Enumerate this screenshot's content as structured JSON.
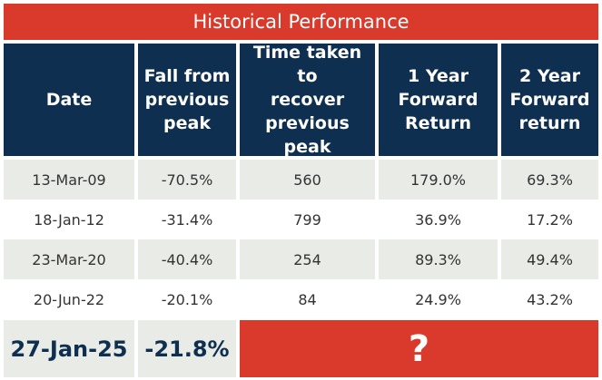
{
  "title": "Historical Performance",
  "headers": [
    "Date",
    "Fall from\nprevious\npeak",
    "Time taken to\nrecover\nprevious peak",
    "1 Year\nForward\nReturn",
    "2 Year\nForward\nreturn"
  ],
  "rows": [
    [
      "13-Mar-09",
      "-70.5%",
      "560",
      "179.0%",
      "69.3%"
    ],
    [
      "18-Jan-12",
      "-31.4%",
      "799",
      "36.9%",
      "17.2%"
    ],
    [
      "23-Mar-20",
      "-40.4%",
      "254",
      "89.3%",
      "49.4%"
    ],
    [
      "20-Jun-22",
      "-20.1%",
      "84",
      "24.9%",
      "43.2%"
    ]
  ],
  "current": {
    "date": "27-Jan-25",
    "fall": "-21.8%",
    "unknown": "?"
  },
  "colors": {
    "accent_red": "#d93a2b",
    "header_navy": "#0e2f4f",
    "shaded_row": "#e8ebe6"
  }
}
